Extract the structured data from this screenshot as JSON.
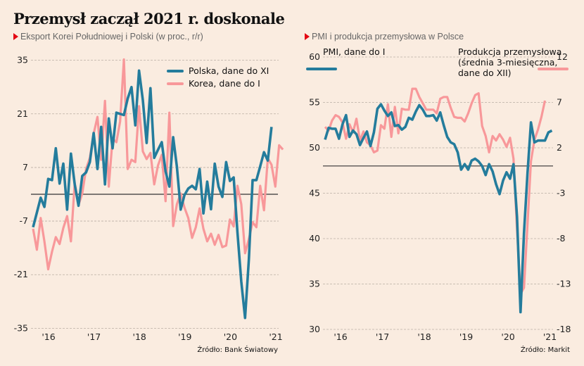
{
  "title": "Przemysł zaczął 2021 r. doskonale",
  "colors": {
    "polska": "#247c9c",
    "korea": "#f8989a",
    "pmi": "#247c9c",
    "production": "#f8989a",
    "accent": "#e30613"
  },
  "chart_data": [
    {
      "type": "line",
      "subtitle": "Eksport Korei Południowej i Polski (w proc., r/r)",
      "source": "Źródło: Bank Światowy",
      "ylim": [
        -35,
        35
      ],
      "yticks": [
        "35",
        "21",
        "7",
        "-7",
        "-21",
        "-35"
      ],
      "ytick_values": [
        35,
        21,
        7,
        -7,
        -21,
        -35
      ],
      "xticks": [
        "'16",
        "'17",
        "'18",
        "'19",
        "'20",
        "'21"
      ],
      "x_start": "2015-09",
      "reference_line": 0,
      "legend": [
        "Polska, dane do XI",
        "Korea, dane do I"
      ],
      "legend_position": "top-right",
      "series": [
        {
          "name": "Polska, dane do XI",
          "values": [
            -8.6,
            -4.8,
            -0.9,
            -3.3,
            4,
            3.7,
            12,
            2.8,
            8,
            -4,
            10.6,
            2.6,
            -3,
            4.8,
            5.7,
            8.4,
            16,
            6.6,
            17.6,
            2.6,
            19.8,
            12,
            21.3,
            21,
            20.7,
            25,
            28,
            18,
            32.3,
            24.6,
            13.4,
            27.7,
            9.5,
            11.6,
            13.6,
            6,
            2,
            14.9,
            7.2,
            -4,
            -0.2,
            1.5,
            2.2,
            1.3,
            6.6,
            -5,
            3.3,
            -3.9,
            8,
            2,
            -0.7,
            8.4,
            3.5,
            4.4,
            -10,
            -22.8,
            -32.3,
            -17,
            3.7,
            3.7,
            7.3,
            11,
            8.8,
            17.6
          ]
        },
        {
          "name": "Korea, dane do I",
          "values": [
            -9,
            -14.5,
            -6.2,
            -12.3,
            -19.6,
            -15,
            -11.2,
            -13,
            -8.8,
            -5.7,
            -12.3,
            2.9,
            -2.8,
            0.2,
            6.6,
            9.5,
            15.8,
            20.2,
            9,
            24.4,
            2,
            14.5,
            13.6,
            19,
            35.2,
            6.6,
            9,
            8.4,
            23,
            11.2,
            9.2,
            10.8,
            2.6,
            7.5,
            10.3,
            -1.8,
            21.3,
            -8.3,
            -2.6,
            0.2,
            -3.5,
            -6.2,
            -11.4,
            -8.6,
            -3.7,
            -9,
            -12.3,
            -10.3,
            -13.2,
            -10.6,
            -13.8,
            -13.4,
            -6.6,
            -8.4,
            2.2,
            -2.6,
            -15.4,
            -11.7,
            -7.3,
            -8.6,
            2.2,
            -4.2,
            9.4,
            7.7,
            2,
            12.8,
            11.7
          ]
        }
      ]
    },
    {
      "type": "line",
      "subtitle": "PMI i produkcja przemysłowa w Polsce",
      "source": "Źródło: Markit",
      "ylim": [
        30,
        60
      ],
      "ylim_right": [
        -18,
        12
      ],
      "yticks": [
        "60",
        "55",
        "50",
        "45",
        "40",
        "35",
        "30"
      ],
      "ytick_values": [
        60,
        55,
        50,
        45,
        40,
        35,
        30
      ],
      "yticks_right": [
        "12",
        "7",
        "2",
        "-3",
        "-8",
        "-13",
        "-18"
      ],
      "xticks": [
        "'16",
        "'17",
        "'18",
        "'19",
        "'20",
        "'21"
      ],
      "x_start": "2015-09",
      "reference_line_right": 0,
      "legend": [
        "PMI, dane do I",
        "Produkcja przemysłowa (średnia 3-miesięczna, dane do XII)"
      ],
      "legend_lines": [
        "PMI, dane do I",
        "Produkcja przemysłowa",
        "(średnia 3-miesięczna,",
        "dane do XII)"
      ],
      "series": [
        {
          "name": "PMI, dane do I",
          "axis": "left",
          "values": [
            50.9,
            52.2,
            52.1,
            52.1,
            51.0,
            52.6,
            53.6,
            51.2,
            51.9,
            51.5,
            50.3,
            51.1,
            51.8,
            50.2,
            51.7,
            54.3,
            54.8,
            54.1,
            53.5,
            53.9,
            52.4,
            52.5,
            52.0,
            52.3,
            53.3,
            53.1,
            54.0,
            54.7,
            54.2,
            53.5,
            53.5,
            53.6,
            53.0,
            53.9,
            52.5,
            51.2,
            50.6,
            50.4,
            49.5,
            47.6,
            48.2,
            47.6,
            48.6,
            48.8,
            48.5,
            48.0,
            47.0,
            48.2,
            47.4,
            46.0,
            44.9,
            46.4,
            47.3,
            46.6,
            48.2,
            42.4,
            31.9,
            40.6,
            47.2,
            52.8,
            50.6,
            50.8,
            50.8,
            50.8,
            51.7,
            51.9
          ]
        },
        {
          "name": "Produkcja przemysłowa",
          "axis": "right",
          "values": [
            4.3,
            3.9,
            5.0,
            5.6,
            5.4,
            4.8,
            3.0,
            4.6,
            3.7,
            5.2,
            2.8,
            3.8,
            2.6,
            2.3,
            1.5,
            1.7,
            4.5,
            4.1,
            6.8,
            3.2,
            6.5,
            3.6,
            6.3,
            6.2,
            6.2,
            8.5,
            8.5,
            7.6,
            6.9,
            6.2,
            6.2,
            6.2,
            5.8,
            7.4,
            7.6,
            7.6,
            6.4,
            5.4,
            5.3,
            5.3,
            4.9,
            5.8,
            6.9,
            7.8,
            8.0,
            4.4,
            3.3,
            1.5,
            3.3,
            2.8,
            3.5,
            2.9,
            2.1,
            3.1,
            0.8,
            -7.0,
            -14.1,
            -13.4,
            -6.4,
            0.5,
            2.9,
            4.0,
            5.4,
            7.2
          ]
        }
      ]
    }
  ]
}
